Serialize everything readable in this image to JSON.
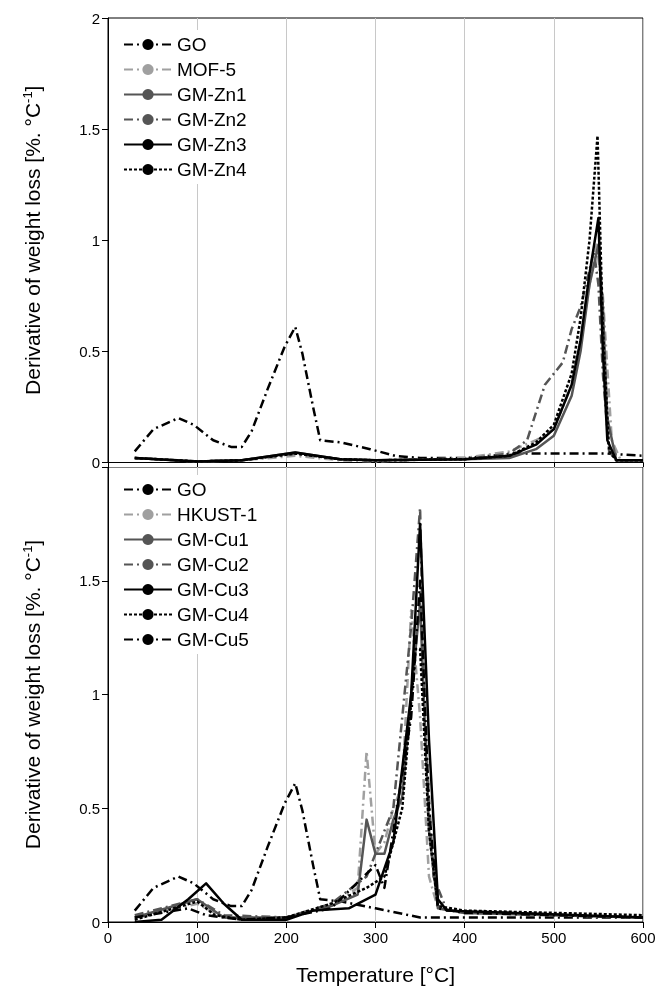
{
  "chart_data": [
    {
      "type": "line",
      "ylabel": "Derivative of weight loss [%. °C$^{-1}$]",
      "xlim": [
        0,
        600
      ],
      "xticks": [
        0,
        100,
        200,
        300,
        400,
        500,
        600
      ],
      "ylim": [
        0,
        2
      ],
      "yticks": [
        0,
        0.5,
        1,
        1.5,
        2
      ],
      "tick_labels": "y",
      "grid": "x",
      "legend": "top left",
      "series": [
        {
          "name": "GO",
          "color": "#000000",
          "line_style": "dashed",
          "x": [
            30,
            51,
            79,
            96,
            118,
            138,
            150,
            161,
            179,
            198,
            210,
            218,
            230,
            238,
            262,
            294,
            322,
            350,
            400,
            454,
            526,
            560,
            600
          ],
          "values": [
            0.05,
            0.15,
            0.2,
            0.17,
            0.1,
            0.07,
            0.07,
            0.14,
            0.33,
            0.52,
            0.61,
            0.49,
            0.25,
            0.1,
            0.09,
            0.06,
            0.03,
            0.02,
            0.02,
            0.04,
            0.04,
            0.04,
            0.03
          ]
        },
        {
          "name": "MOF-5",
          "color": "#a0a0a0",
          "line_style": "dashed",
          "x": [
            30,
            100,
            150,
            210,
            260,
            300,
            400,
            450,
            480,
            500,
            520,
            530,
            540,
            548,
            555,
            565,
            575,
            600
          ],
          "values": [
            0.02,
            0.005,
            0.01,
            0.03,
            0.01,
            0.005,
            0.02,
            0.05,
            0.1,
            0.15,
            0.35,
            0.55,
            0.8,
            0.98,
            0.75,
            0.1,
            0.01,
            0.01
          ]
        },
        {
          "name": "GM-Zn1",
          "color": "#555555",
          "line_style": "solid",
          "x": [
            30,
            100,
            150,
            210,
            260,
            300,
            400,
            450,
            480,
            500,
            520,
            530,
            540,
            550,
            555,
            560,
            570,
            600
          ],
          "values": [
            0.02,
            0.005,
            0.01,
            0.045,
            0.015,
            0.01,
            0.015,
            0.02,
            0.06,
            0.12,
            0.3,
            0.5,
            0.8,
            0.98,
            0.7,
            0.2,
            0.01,
            0.01
          ]
        },
        {
          "name": "GM-Zn2",
          "color": "#555555",
          "line_style": "dashed",
          "x": [
            30,
            100,
            150,
            210,
            260,
            300,
            400,
            450,
            470,
            490,
            500,
            510,
            520,
            530,
            545,
            550,
            555,
            562,
            570,
            600
          ],
          "values": [
            0.02,
            0.005,
            0.01,
            0.04,
            0.015,
            0.01,
            0.015,
            0.04,
            0.1,
            0.35,
            0.4,
            0.45,
            0.6,
            0.7,
            0.95,
            0.8,
            0.4,
            0.05,
            0.01,
            0.01
          ]
        },
        {
          "name": "GM-Zn3",
          "color": "#000000",
          "line_style": "solid",
          "x": [
            30,
            100,
            150,
            210,
            260,
            300,
            400,
            450,
            480,
            500,
            520,
            530,
            540,
            550,
            555,
            560,
            570,
            600
          ],
          "values": [
            0.02,
            0.005,
            0.01,
            0.045,
            0.015,
            0.01,
            0.015,
            0.03,
            0.08,
            0.15,
            0.35,
            0.55,
            0.85,
            1.1,
            0.5,
            0.1,
            0.01,
            0.01
          ]
        },
        {
          "name": "GM-Zn4",
          "color": "#000000",
          "line_style": "dotted",
          "x": [
            30,
            100,
            150,
            210,
            260,
            300,
            400,
            450,
            480,
            500,
            520,
            530,
            540,
            549,
            555,
            562,
            570,
            600
          ],
          "values": [
            0.02,
            0.005,
            0.01,
            0.04,
            0.015,
            0.01,
            0.015,
            0.03,
            0.09,
            0.17,
            0.4,
            0.65,
            1.0,
            1.47,
            0.6,
            0.05,
            0.01,
            0.01
          ]
        }
      ]
    },
    {
      "type": "line",
      "xlabel": "Temperature [°C]",
      "ylabel": "Derivative of weight loss [%. °C$^{-1}$]",
      "xlim": [
        0,
        600
      ],
      "xticks": [
        0,
        100,
        200,
        300,
        400,
        500,
        600
      ],
      "ylim": [
        0,
        2
      ],
      "yticks": [
        0,
        0.5,
        1,
        1.5,
        {
          "value": 2,
          "label": null
        }
      ],
      "grid": "x",
      "legend": "top left",
      "series": [
        {
          "name": "GO",
          "color": "#000000",
          "line_style": "dashed",
          "x": [
            30,
            51,
            79,
            96,
            118,
            138,
            150,
            161,
            179,
            198,
            210,
            218,
            230,
            238,
            262,
            300,
            350,
            380,
            450,
            600
          ],
          "values": [
            0.05,
            0.15,
            0.2,
            0.17,
            0.1,
            0.07,
            0.07,
            0.14,
            0.33,
            0.52,
            0.61,
            0.49,
            0.25,
            0.1,
            0.09,
            0.06,
            0.02,
            0.02,
            0.02,
            0.02
          ]
        },
        {
          "name": "HKUST-1",
          "color": "#a0a0a0",
          "line_style": "dashed",
          "x": [
            30,
            100,
            130,
            200,
            250,
            280,
            290,
            300,
            310,
            320,
            330,
            340,
            350,
            360,
            370,
            400,
            600
          ],
          "values": [
            0.02,
            0.08,
            0.02,
            0.02,
            0.07,
            0.15,
            0.75,
            0.3,
            0.35,
            0.5,
            0.6,
            1.37,
            0.9,
            0.2,
            0.06,
            0.04,
            0.02
          ]
        },
        {
          "name": "GM-Cu1",
          "color": "#555555",
          "line_style": "solid",
          "x": [
            30,
            100,
            130,
            200,
            250,
            280,
            290,
            300,
            310,
            320,
            330,
            340,
            350,
            360,
            370,
            400,
            600
          ],
          "values": [
            0.02,
            0.1,
            0.02,
            0.02,
            0.07,
            0.12,
            0.45,
            0.3,
            0.3,
            0.45,
            0.55,
            1.0,
            1.4,
            0.4,
            0.06,
            0.04,
            0.02
          ]
        },
        {
          "name": "GM-Cu2",
          "color": "#555555",
          "line_style": "dashed",
          "x": [
            30,
            100,
            130,
            200,
            250,
            290,
            320,
            340,
            350,
            355,
            365,
            380,
            600
          ],
          "values": [
            0.03,
            0.1,
            0.03,
            0.02,
            0.08,
            0.2,
            0.5,
            1.3,
            1.82,
            0.9,
            0.2,
            0.05,
            0.02
          ]
        },
        {
          "name": "GM-Cu3",
          "color": "#000000",
          "line_style": "solid",
          "x": [
            30,
            60,
            90,
            110,
            130,
            150,
            200,
            230,
            270,
            300,
            320,
            340,
            350,
            360,
            370,
            380,
            600
          ],
          "values": [
            0,
            0.01,
            0.1,
            0.17,
            0.08,
            0.01,
            0.01,
            0.05,
            0.06,
            0.12,
            0.35,
            1.0,
            1.75,
            0.8,
            0.1,
            0.05,
            0.02
          ]
        },
        {
          "name": "GM-Cu4",
          "color": "#000000",
          "line_style": "dotted",
          "x": [
            30,
            100,
            120,
            150,
            200,
            250,
            290,
            310,
            330,
            345,
            350,
            360,
            370,
            400,
            600
          ],
          "values": [
            0.01,
            0.09,
            0.03,
            0.01,
            0.02,
            0.08,
            0.15,
            0.2,
            0.5,
            1.2,
            1.2,
            0.4,
            0.07,
            0.05,
            0.03
          ]
        },
        {
          "name": "GM-Cu5",
          "color": "#000000",
          "line_style": "dashed",
          "x": [
            30,
            90,
            110,
            150,
            200,
            250,
            300,
            310,
            340,
            350,
            360,
            370,
            400,
            600
          ],
          "values": [
            0.02,
            0.06,
            0.03,
            0.01,
            0.02,
            0.06,
            0.25,
            0.15,
            0.9,
            1.5,
            0.5,
            0.06,
            0.04,
            0.02
          ]
        }
      ]
    }
  ]
}
